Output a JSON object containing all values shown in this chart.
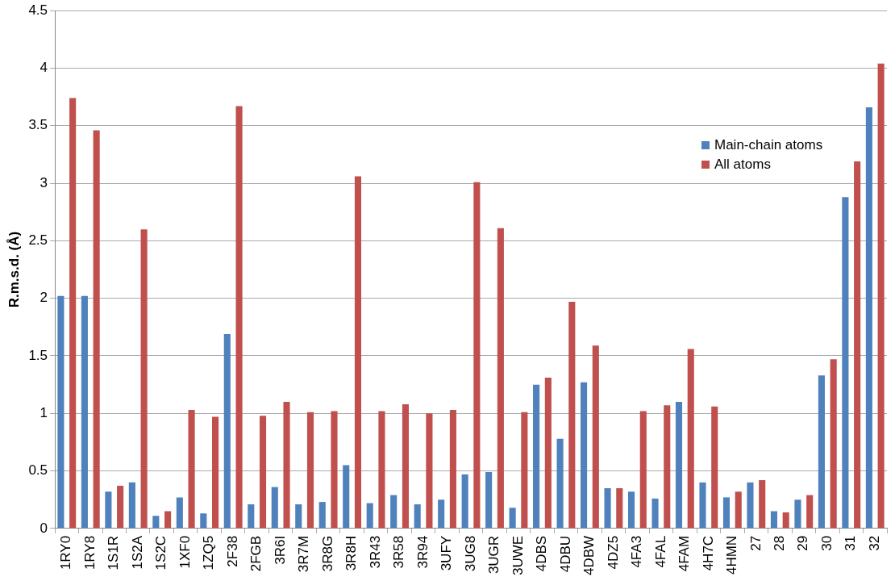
{
  "chart_data": {
    "type": "bar",
    "ylabel": "R.m.s.d. (Å)",
    "categories": [
      "1RY0",
      "1RY8",
      "1S1R",
      "1S2A",
      "1S2C",
      "1XF0",
      "1ZQ5",
      "2F38",
      "2FGB",
      "3R6I",
      "3R7M",
      "3R8G",
      "3R8H",
      "3R43",
      "3R58",
      "3R94",
      "3UFY",
      "3UG8",
      "3UGR",
      "3UWE",
      "4DBS",
      "4DBU",
      "4DBW",
      "4DZ5",
      "4FA3",
      "4FAL",
      "4FAM",
      "4H7C",
      "4HMN",
      "27",
      "28",
      "29",
      "30",
      "31",
      "32"
    ],
    "series": [
      {
        "name": "Main-chain atoms",
        "color": "#4f81bd",
        "values": [
          2.02,
          2.02,
          0.32,
          0.4,
          0.11,
          0.27,
          0.13,
          1.69,
          0.21,
          0.36,
          0.21,
          0.23,
          0.55,
          0.22,
          0.29,
          0.21,
          0.25,
          0.47,
          0.49,
          0.18,
          1.25,
          0.78,
          1.27,
          0.35,
          0.32,
          0.26,
          1.1,
          0.4,
          0.27,
          0.4,
          0.15,
          0.25,
          1.33,
          2.88,
          3.66
        ]
      },
      {
        "name": "All atoms",
        "color": "#c0504d",
        "values": [
          3.74,
          3.46,
          0.37,
          2.6,
          0.15,
          1.03,
          0.97,
          3.67,
          0.98,
          1.1,
          1.01,
          1.02,
          3.06,
          1.02,
          1.08,
          1.0,
          1.03,
          3.01,
          2.61,
          1.01,
          1.31,
          1.97,
          1.59,
          0.35,
          1.02,
          1.07,
          1.56,
          1.06,
          0.32,
          0.42,
          0.14,
          0.29,
          1.47,
          3.19,
          4.04
        ]
      }
    ],
    "ylim": [
      0,
      4.5
    ],
    "yticks": [
      0,
      0.5,
      1,
      1.5,
      2,
      2.5,
      3,
      3.5,
      4,
      4.5
    ],
    "grid": "y",
    "legend": "right"
  }
}
